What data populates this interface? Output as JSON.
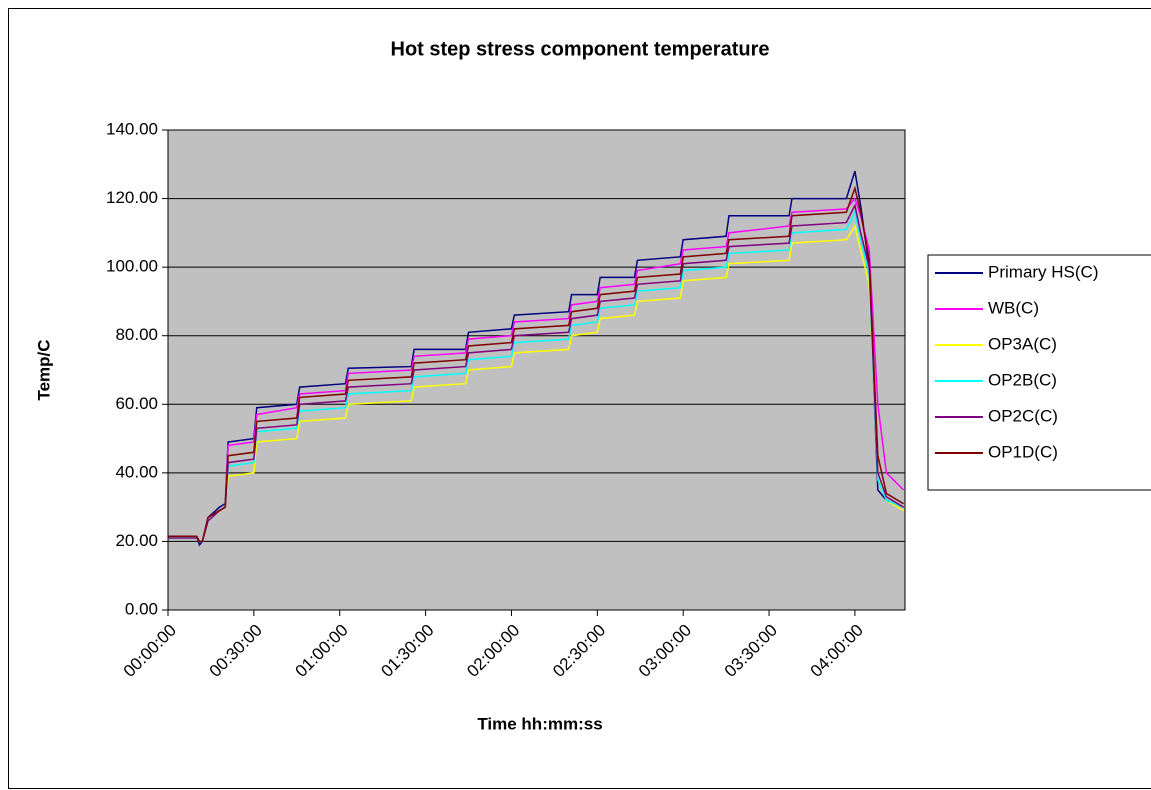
{
  "chart_data": {
    "type": "line",
    "title": "Hot step stress component temperature",
    "x_label": "Time hh:mm:ss",
    "y_label": "Temp/C",
    "legend": "right",
    "grid": true,
    "xlim": [
      0,
      257.5
    ],
    "ylim": [
      0,
      140
    ],
    "xticks": [
      {
        "value": 0,
        "label": "00:00:00"
      },
      {
        "value": 30,
        "label": "00:30:00"
      },
      {
        "value": 60,
        "label": "01:00:00"
      },
      {
        "value": 90,
        "label": "01:30:00"
      },
      {
        "value": 120,
        "label": "02:00:00"
      },
      {
        "value": 150,
        "label": "02:30:00"
      },
      {
        "value": 180,
        "label": "03:00:00"
      },
      {
        "value": 210,
        "label": "03:30:00"
      },
      {
        "value": 240,
        "label": "04:00:00"
      }
    ],
    "yticks": [
      {
        "value": 0,
        "label": "0.00"
      },
      {
        "value": 20,
        "label": "20.00"
      },
      {
        "value": 40,
        "label": "40.00"
      },
      {
        "value": 60,
        "label": "60.00"
      },
      {
        "value": 80,
        "label": "80.00"
      },
      {
        "value": 100,
        "label": "100.00"
      },
      {
        "value": 120,
        "label": "120.00"
      },
      {
        "value": 140,
        "label": "140.00"
      }
    ],
    "x": [
      0,
      10,
      11,
      12,
      14,
      18,
      20,
      21,
      30,
      31,
      45,
      46,
      62,
      63,
      85,
      86,
      104,
      105,
      120,
      121,
      140,
      141,
      150,
      151,
      163,
      164,
      179,
      180,
      195,
      196,
      217,
      218,
      237,
      240,
      242,
      245,
      248,
      251,
      257
    ],
    "series": [
      {
        "name": "Primary HS(C)",
        "color": "#000080",
        "values": [
          21.5,
          21.5,
          19,
          20,
          27,
          30,
          31,
          49,
          50,
          59,
          60,
          65,
          66,
          70.5,
          71,
          76,
          76,
          81,
          82,
          86,
          87,
          92,
          92,
          97,
          97,
          102,
          103,
          108,
          109,
          115,
          115,
          120,
          120,
          128,
          118,
          100,
          35,
          32,
          30
        ]
      },
      {
        "name": "WB(C)",
        "color": "#ff00ff",
        "values": [
          21.5,
          21.5,
          20,
          20,
          27,
          29,
          30,
          48,
          49,
          57,
          59,
          63,
          64,
          69,
          70,
          74,
          75,
          79,
          80,
          84,
          85,
          89,
          90,
          94,
          95,
          99,
          101,
          105,
          106,
          110,
          112,
          116,
          117,
          120,
          115,
          105,
          60,
          40,
          35
        ]
      },
      {
        "name": "OP3A(C)",
        "color": "#ffff00",
        "values": [
          21,
          21,
          20,
          20,
          26,
          29,
          30,
          39,
          40,
          49,
          50,
          55,
          56,
          60,
          61,
          65,
          66,
          70,
          71,
          75,
          76,
          80,
          81,
          85,
          86,
          90,
          91,
          96,
          97,
          101,
          102,
          107,
          108,
          112,
          105,
          95,
          40,
          32,
          29
        ]
      },
      {
        "name": "OP2B(C)",
        "color": "#00ffff",
        "values": [
          21,
          21,
          20,
          20,
          26,
          29,
          30,
          42,
          43,
          52,
          53,
          58,
          59,
          63,
          64,
          68,
          69,
          73,
          74,
          78,
          79,
          83,
          84,
          88,
          89,
          93,
          94,
          99,
          100,
          104,
          105,
          110,
          111,
          116,
          108,
          98,
          38,
          32,
          30
        ]
      },
      {
        "name": "OP2C(C)",
        "color": "#800080",
        "values": [
          21,
          21,
          20,
          20,
          26,
          29,
          30,
          43,
          44,
          53,
          54,
          60,
          61,
          65,
          66,
          70,
          71,
          75,
          76,
          80,
          81,
          85,
          86,
          90,
          91,
          95,
          96,
          101,
          102,
          106,
          107,
          112,
          113,
          118,
          110,
          100,
          40,
          33,
          30
        ]
      },
      {
        "name": "OP1D(C)",
        "color": "#800000",
        "values": [
          21.5,
          21.5,
          20,
          20,
          27,
          29,
          30,
          45,
          46,
          55,
          56,
          62,
          63,
          67,
          68,
          72,
          73,
          77,
          78,
          82,
          83,
          87,
          88,
          92,
          93,
          97,
          98,
          103,
          104,
          108,
          109,
          115,
          116,
          123,
          116,
          102,
          45,
          34,
          31
        ]
      }
    ]
  }
}
